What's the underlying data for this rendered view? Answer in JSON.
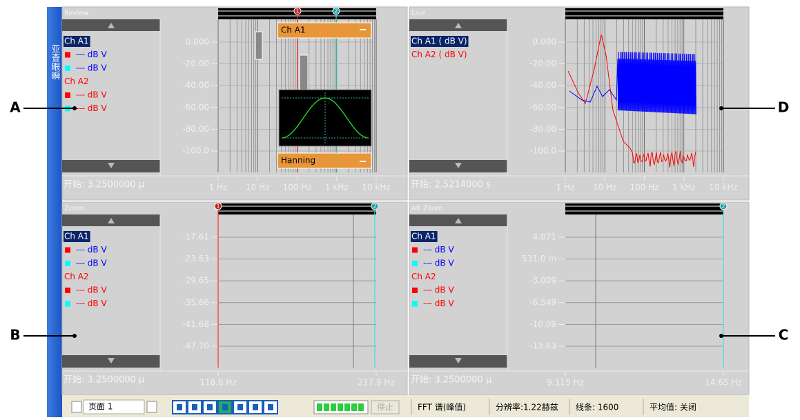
{
  "sidebar": {
    "label": "亚查眼瞬"
  },
  "callouts": [
    "A",
    "B",
    "C",
    "D"
  ],
  "panels": [
    {
      "title": "Review",
      "legend": [
        "Ch A1",
        "--- dB V",
        "--- dB V",
        "Ch A2",
        "--- dB V",
        "--- dB V"
      ],
      "yticks": [
        "0.000",
        "-20.00",
        "-40.00",
        "-60.00",
        "-80.00",
        "-100.0"
      ],
      "xticks": [
        "1 Hz",
        "10 Hz",
        "100 Hz",
        "1 kHz",
        "10 kHz"
      ],
      "start": "开始: 3.2500000 μ",
      "markers": [
        "1",
        "2"
      ]
    },
    {
      "title": "Live",
      "legend": [
        "Ch A1 ( dB V)",
        "Ch A2 ( dB V)"
      ],
      "yticks": [
        "0.000",
        "-20.00",
        "-40.00",
        "-60.00",
        "-80.00",
        "-100.0"
      ],
      "xticks": [
        "1 Hz",
        "10 Hz",
        "100 Hz",
        "1 kHz",
        "10 kHz"
      ],
      "start": "开始: 2.5214000 s",
      "markers": []
    },
    {
      "title": "Zoom",
      "legend": [
        "Ch A1",
        "--- dB V",
        "--- dB V",
        "Ch A2",
        "--- dB V",
        "--- dB V"
      ],
      "yticks": [
        "-17.61",
        "-23.63",
        "-29.65",
        "-35.66",
        "-41.68",
        "-47.70"
      ],
      "xticks": [
        "118.6 Hz",
        "217.9 Hz"
      ],
      "start": "开始: 3.2500000 μ",
      "markers": [
        "1",
        "2"
      ]
    },
    {
      "title": "Alt Zoom",
      "legend": [
        "Ch A1",
        "--- dB V",
        "--- dB V",
        "Ch A2",
        "--- dB V",
        "--- dB V"
      ],
      "yticks": [
        "4.071",
        "531.0 m",
        "-3.009",
        "-6.549",
        "-10.09",
        "-13.63"
      ],
      "xticks": [
        "9.115 Hz",
        "14.65 Hz"
      ],
      "start": "开始: 3.2500000 μ",
      "markers": [
        "2"
      ]
    }
  ],
  "overlay": {
    "channel": "Ch A1",
    "window": "Hanning"
  },
  "statusbar": {
    "page": "页面 1",
    "stop": "停止",
    "mode": "FFT 谱(峰值)",
    "resolution": "分辨率:1.22赫兹",
    "lines": "线条: 1600",
    "average": "平均值: 关闭"
  }
}
